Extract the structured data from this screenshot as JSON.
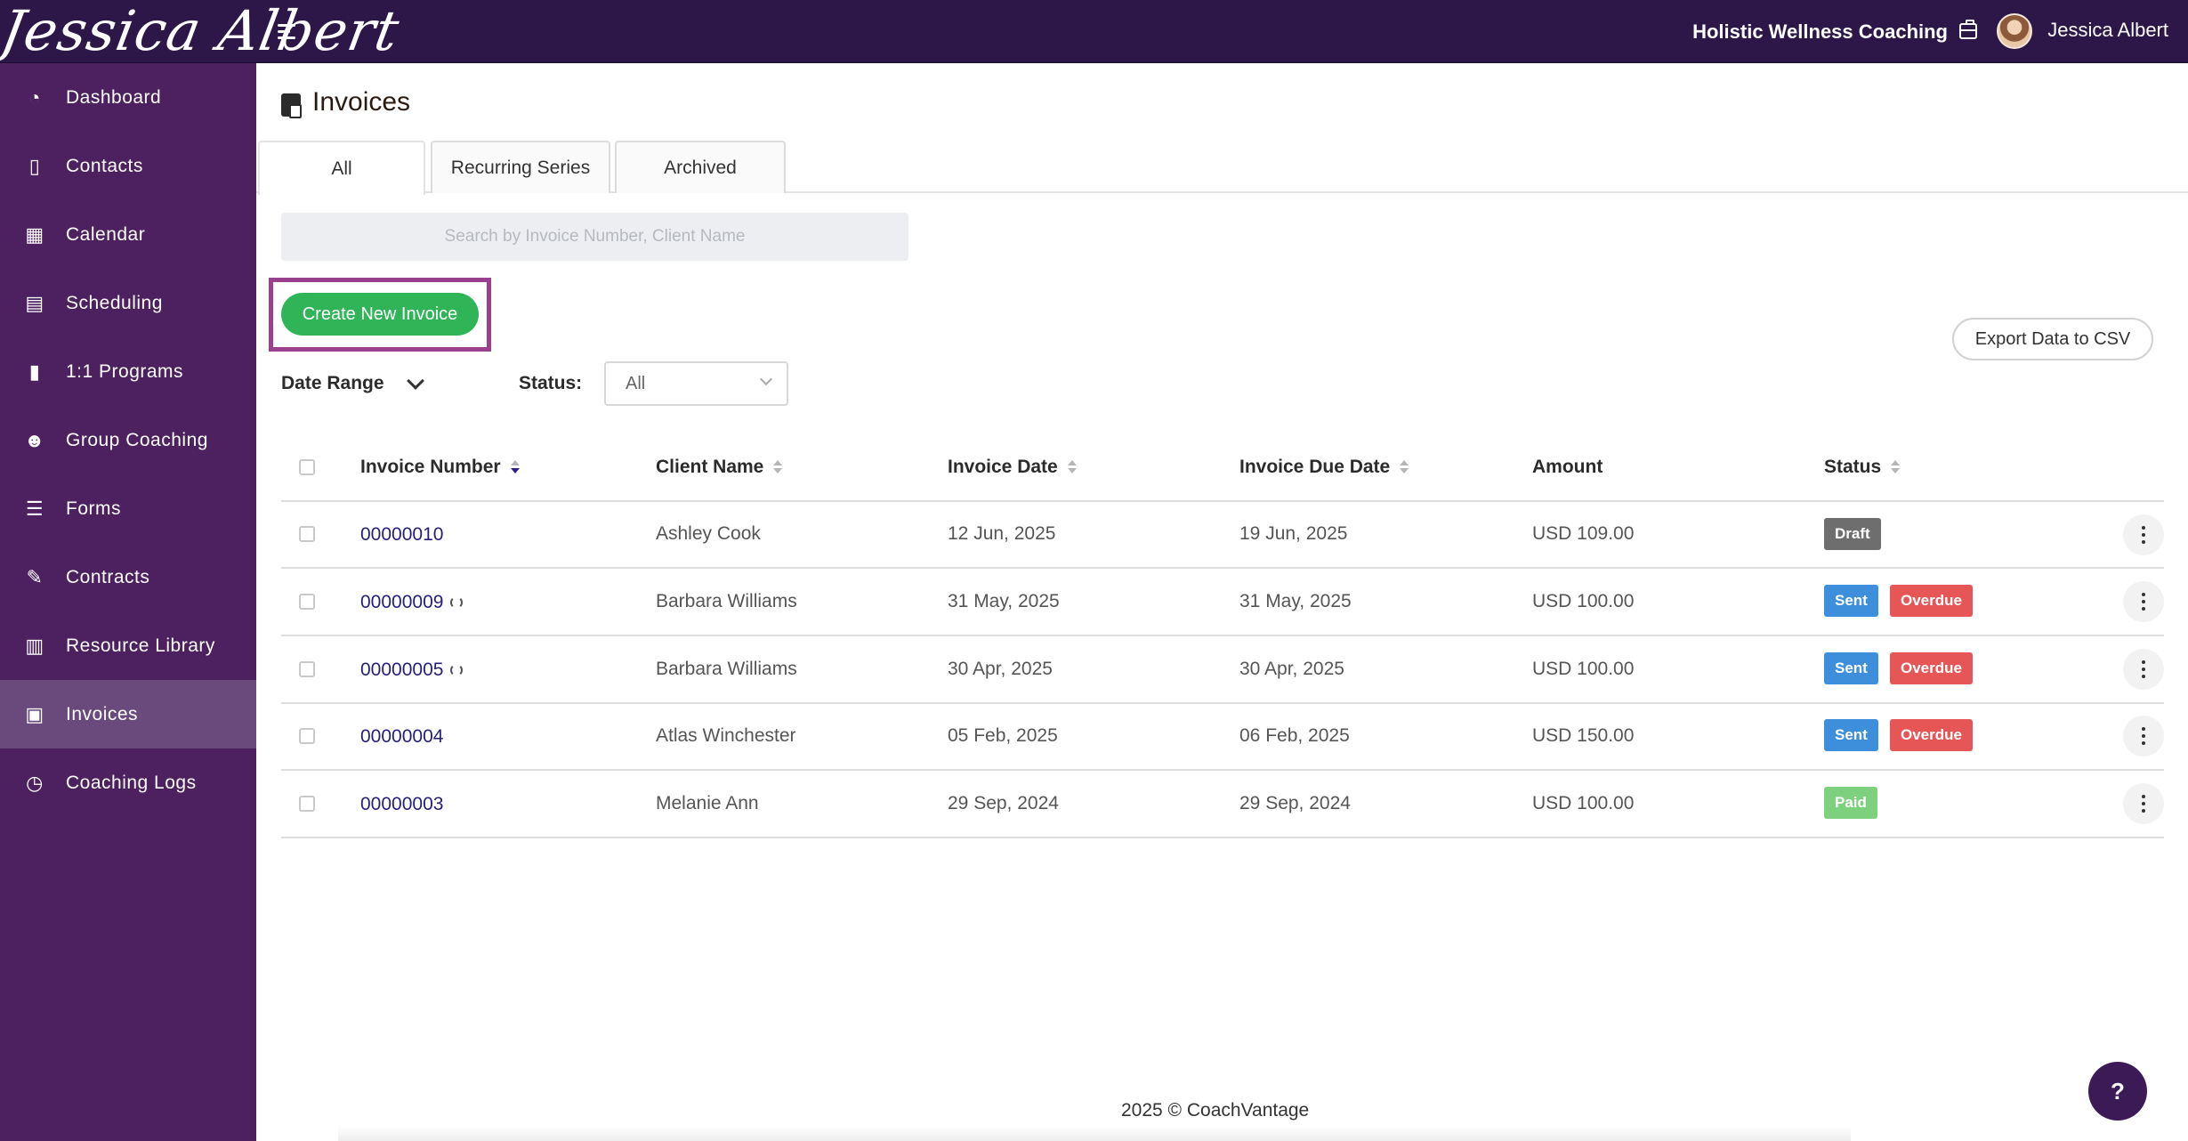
{
  "header": {
    "brand": "Jessica Albert",
    "business_name": "Holistic Wellness Coaching",
    "user_name": "Jessica Albert"
  },
  "sidebar": {
    "items": [
      {
        "label": "Dashboard",
        "icon": "dashboard-icon"
      },
      {
        "label": "Contacts",
        "icon": "contacts-icon"
      },
      {
        "label": "Calendar",
        "icon": "calendar-icon"
      },
      {
        "label": "Scheduling",
        "icon": "scheduling-icon"
      },
      {
        "label": "1:1 Programs",
        "icon": "book-icon"
      },
      {
        "label": "Group Coaching",
        "icon": "group-icon"
      },
      {
        "label": "Forms",
        "icon": "forms-icon"
      },
      {
        "label": "Contracts",
        "icon": "contracts-icon"
      },
      {
        "label": "Resource Library",
        "icon": "library-icon"
      },
      {
        "label": "Invoices",
        "icon": "invoices-icon",
        "active": true
      },
      {
        "label": "Coaching Logs",
        "icon": "clock-icon"
      }
    ]
  },
  "page": {
    "title": "Invoices",
    "tabs": [
      "All",
      "Recurring Series",
      "Archived"
    ],
    "active_tab": "All",
    "search_placeholder": "Search by Invoice Number, Client Name",
    "create_label": "Create New Invoice",
    "export_label": "Export Data to CSV",
    "date_range_label": "Date Range",
    "status_label": "Status:",
    "status_value": "All"
  },
  "table": {
    "headers": [
      "Invoice Number",
      "Client Name",
      "Invoice Date",
      "Invoice Due Date",
      "Amount",
      "Status"
    ],
    "rows": [
      {
        "number": "00000010",
        "recurring": false,
        "client": "Ashley Cook",
        "date": "12 Jun, 2025",
        "due": "19 Jun, 2025",
        "amount": "USD 109.00",
        "badges": [
          "Draft"
        ]
      },
      {
        "number": "00000009",
        "recurring": true,
        "client": "Barbara Williams",
        "date": "31 May, 2025",
        "due": "31 May, 2025",
        "amount": "USD 100.00",
        "badges": [
          "Sent",
          "Overdue"
        ]
      },
      {
        "number": "00000005",
        "recurring": true,
        "client": "Barbara Williams",
        "date": "30 Apr, 2025",
        "due": "30 Apr, 2025",
        "amount": "USD 100.00",
        "badges": [
          "Sent",
          "Overdue"
        ]
      },
      {
        "number": "00000004",
        "recurring": false,
        "client": "Atlas Winchester",
        "date": "05 Feb, 2025",
        "due": "06 Feb, 2025",
        "amount": "USD 150.00",
        "badges": [
          "Sent",
          "Overdue"
        ]
      },
      {
        "number": "00000003",
        "recurring": false,
        "client": "Melanie Ann",
        "date": "29 Sep, 2024",
        "due": "29 Sep, 2024",
        "amount": "USD 100.00",
        "badges": [
          "Paid"
        ]
      }
    ]
  },
  "colors": {
    "topbar": "#2d1749",
    "sidebar": "#4d2160",
    "sidebar_active": "#6a4a7c",
    "create_button": "#2fb457",
    "badge_draft": "#6e6e6e",
    "badge_sent": "#3d8fdc",
    "badge_overdue": "#e65656",
    "badge_paid": "#7dd07d",
    "link": "#251f7a"
  },
  "footer": {
    "text": "2025 © CoachVantage",
    "help_label": "?"
  }
}
